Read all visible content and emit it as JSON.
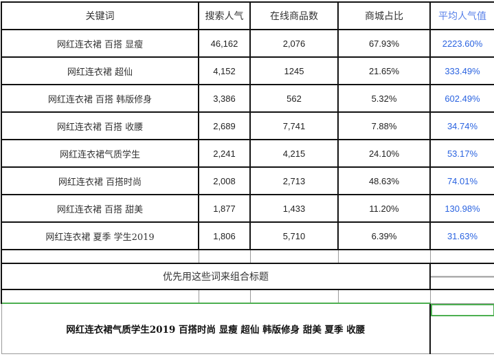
{
  "headers": [
    "关键词",
    "搜索人气",
    "在线商品数",
    "商城占比",
    "平均人气值"
  ],
  "rows": [
    [
      "网红连衣裙 百搭 显瘦",
      "46,162",
      "2,076",
      "67.93%",
      "2223.60%"
    ],
    [
      "网红连衣裙 超仙",
      "4,152",
      "1245",
      "21.65%",
      "333.49%"
    ],
    [
      "网红连衣裙 百搭 韩版修身",
      "3,386",
      "562",
      "5.32%",
      "602.49%"
    ],
    [
      "网红连衣裙 百搭 收腰",
      "2,689",
      "7,741",
      "7.88%",
      "34.74%"
    ],
    [
      "网红连衣裙气质学生",
      "2,241",
      "4,215",
      "24.10%",
      "53.17%"
    ],
    [
      "网红连衣裙 百搭时尚",
      "2,008",
      "2,713",
      "48.63%",
      "74.01%"
    ],
    [
      "网红连衣裙 百搭 甜美",
      "1,877",
      "1,433",
      "11.20%",
      "130.98%"
    ],
    [
      "网红连衣裙 夏季 学生2019",
      "1,806",
      "5,710",
      "6.39%",
      "31.63%"
    ]
  ],
  "note": "优先用这些词来组合标题",
  "combined_title": "网红连衣裙气质学生2019  百搭时尚  显瘦  超仙  韩版修身  甜美  夏季  收腰",
  "colors": {
    "accent_blue": "#2a63e0",
    "selection_green": "#4caf50"
  }
}
